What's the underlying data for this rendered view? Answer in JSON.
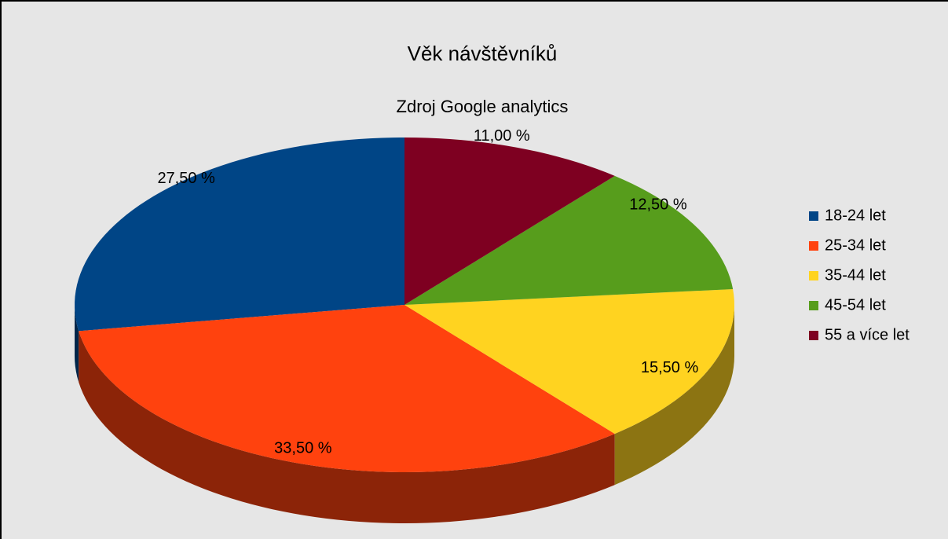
{
  "chart_data": {
    "type": "pie",
    "title": "Věk návštěvníků",
    "subtitle": "Zdroj Google analytics",
    "categories": [
      "18-24 let",
      "25-34 let",
      "35-44 let",
      "45-54 let",
      "55 a více let"
    ],
    "values": [
      27.5,
      33.5,
      15.5,
      12.5,
      11.0
    ],
    "value_labels": [
      "27,50 %",
      "33,50 %",
      "15,50 %",
      "12,50 %",
      "11,00 %"
    ],
    "colors": [
      "#004586",
      "#ff420e",
      "#ffd320",
      "#579d1c",
      "#7e0021"
    ],
    "legend": "right"
  }
}
